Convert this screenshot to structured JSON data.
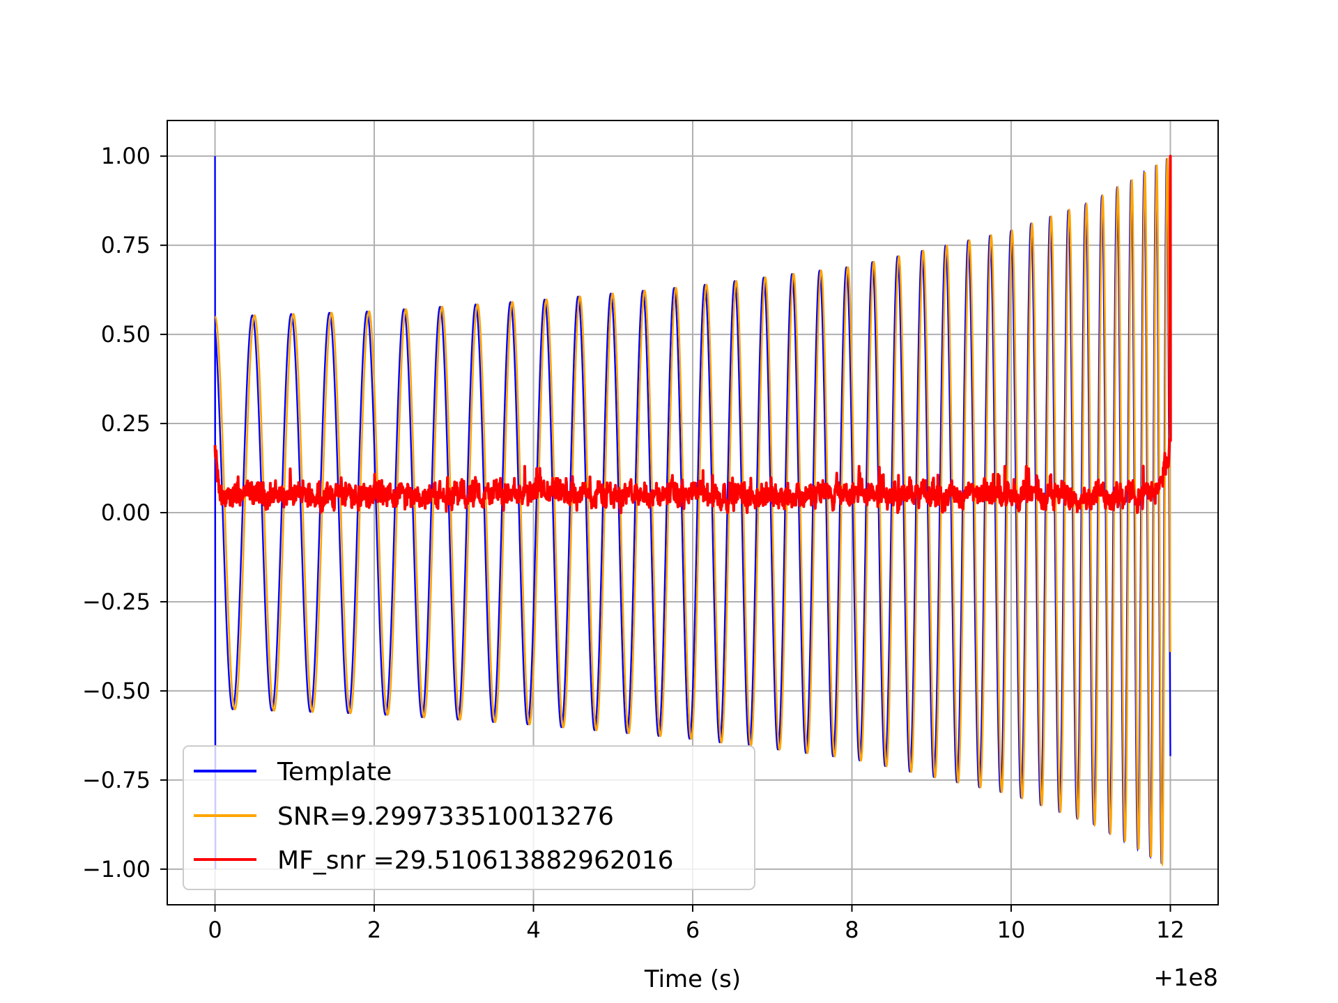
{
  "chart_data": {
    "type": "line",
    "title": "",
    "xlabel": "Time (s)",
    "ylabel": "",
    "x_offset_label": "+1e8",
    "xlim": [
      -0.6,
      12.6
    ],
    "ylim": [
      -1.1,
      1.1
    ],
    "xticks": [
      0,
      2,
      4,
      6,
      8,
      10,
      12
    ],
    "xtick_labels": [
      "0",
      "2",
      "4",
      "6",
      "8",
      "10",
      "12"
    ],
    "yticks": [
      1.0,
      0.75,
      0.5,
      0.25,
      0.0,
      -0.25,
      -0.5,
      -0.75,
      -1.0
    ],
    "ytick_labels": [
      "1.00",
      "0.75",
      "0.50",
      "0.25",
      "0.00",
      "−0.25",
      "−0.50",
      "−0.75",
      "−1.00"
    ],
    "grid": true,
    "legend_position": "lower-left",
    "series": [
      {
        "name": "Template",
        "color": "#0000ff",
        "description": "chirp oscillation, amplitude envelope rising from ~0.55 at t=0 to 1.0 at t=12, with a spike to 1.0 at t=0",
        "envelope": {
          "x": [
            0,
            2,
            4,
            6,
            8,
            10,
            11,
            11.5,
            12
          ],
          "y": [
            0.55,
            0.565,
            0.595,
            0.635,
            0.69,
            0.79,
            0.87,
            0.93,
            1.0
          ]
        }
      },
      {
        "name": "SNR=9.299733510013276",
        "color": "#ffa500",
        "description": "same chirp oscillation overlaid on Template",
        "envelope": {
          "x": [
            0,
            2,
            4,
            6,
            8,
            10,
            11,
            11.5,
            12
          ],
          "y": [
            0.55,
            0.565,
            0.595,
            0.635,
            0.69,
            0.79,
            0.87,
            0.93,
            1.0
          ]
        }
      },
      {
        "name": "MF_snr =29.510613882962016",
        "color": "#ff0000",
        "description": "noisy matched-filter output fluctuating between 0 and ~0.13, with a peak of 1.0 at t=12",
        "start_value": 0.18,
        "baseline_range": [
          0.0,
          0.13
        ],
        "peak": {
          "x": 12.0,
          "y": 1.0
        }
      }
    ]
  }
}
